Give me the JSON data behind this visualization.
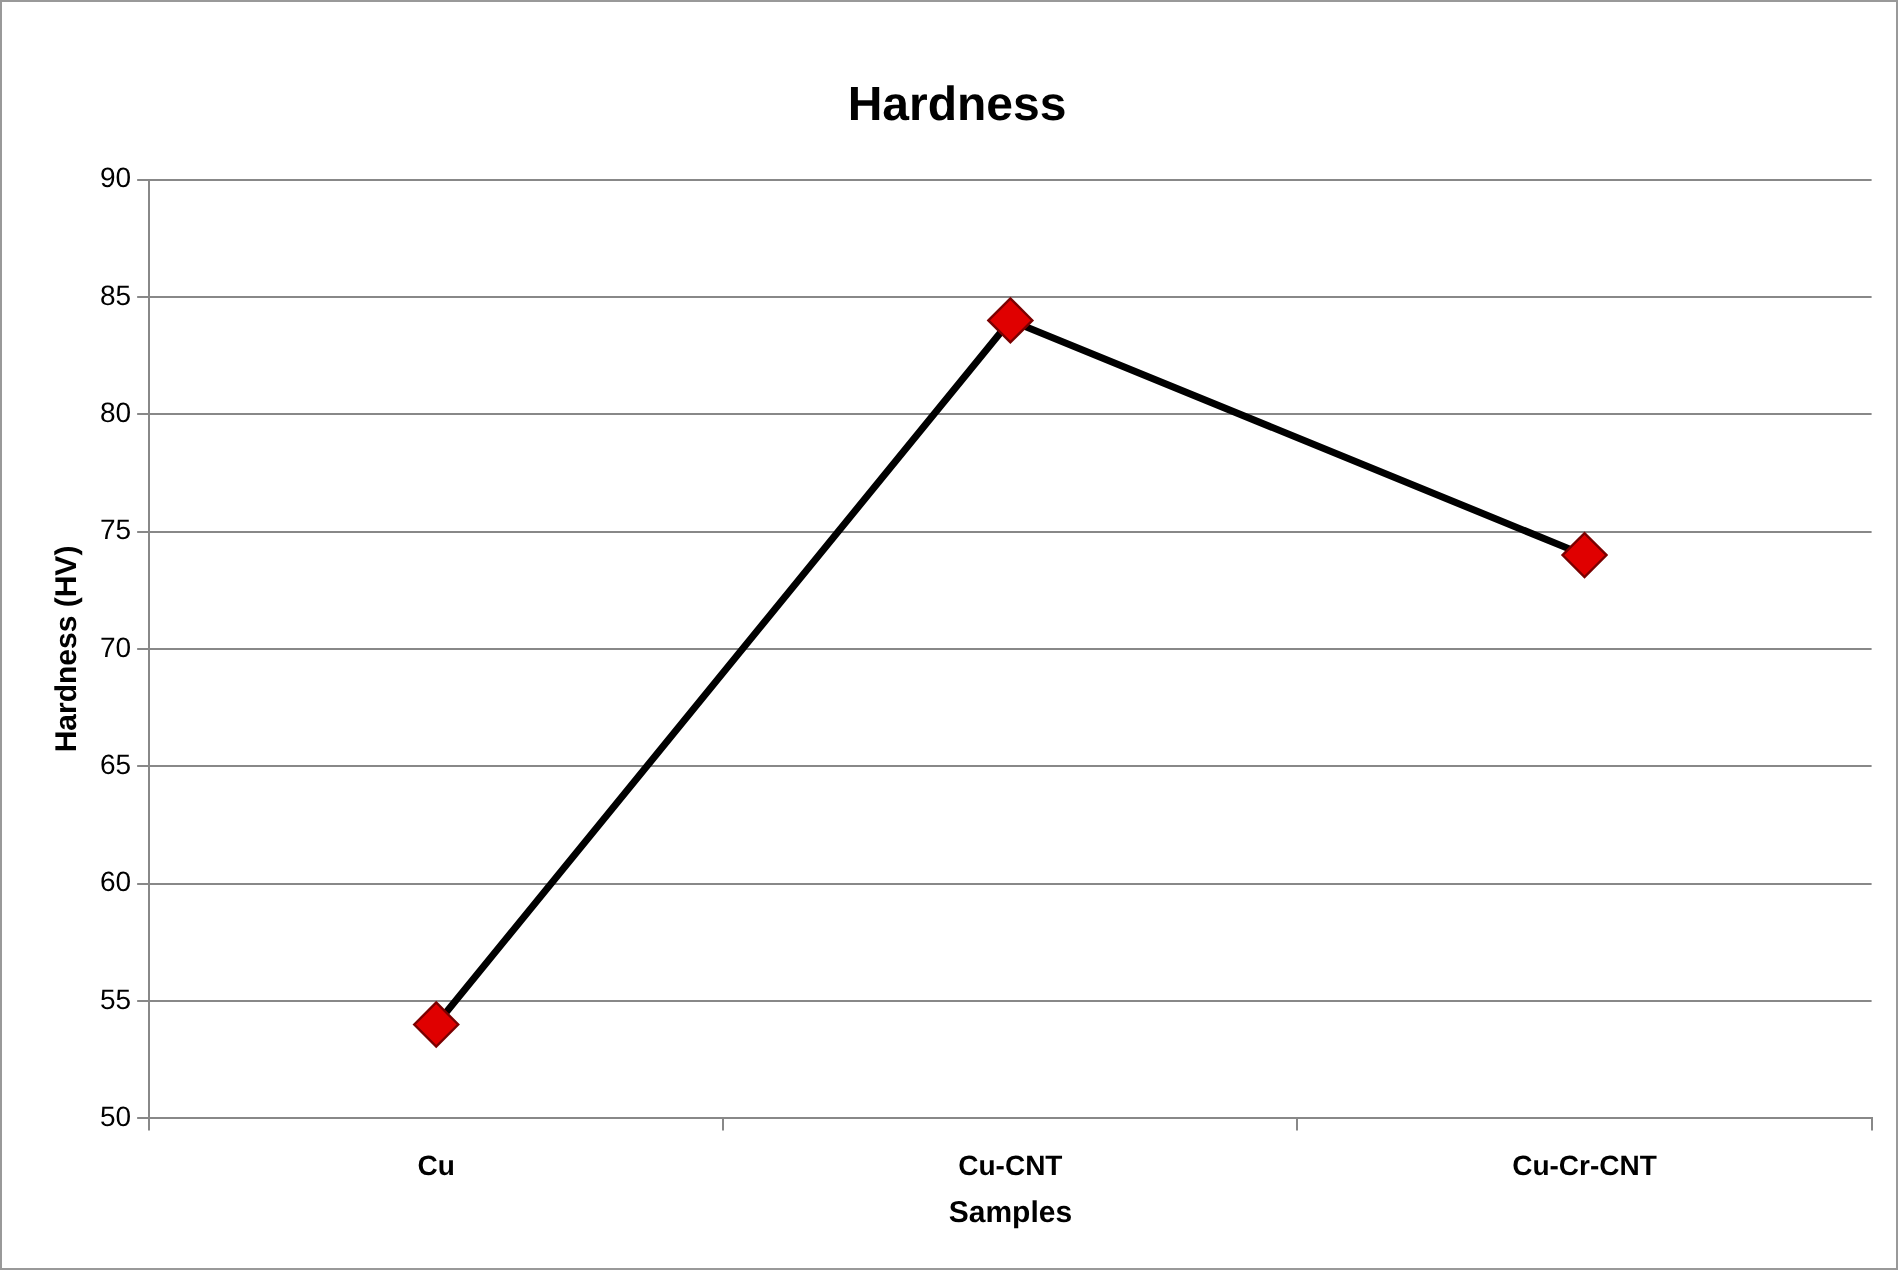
{
  "chart_data": {
    "type": "line",
    "title": "Hardness",
    "xlabel": "Samples",
    "ylabel": "Hardness (HV)",
    "categories": [
      "Cu",
      "Cu-CNT",
      "Cu-Cr-CNT"
    ],
    "series": [
      {
        "color": "#e00000",
        "values": [
          54,
          84,
          74
        ]
      }
    ],
    "marker": "diamond",
    "line_style": "solid",
    "ylim": [
      50,
      90
    ],
    "yticks": [
      50,
      55,
      60,
      65,
      70,
      75,
      80,
      85,
      90
    ],
    "grid": "y",
    "legend": false
  }
}
